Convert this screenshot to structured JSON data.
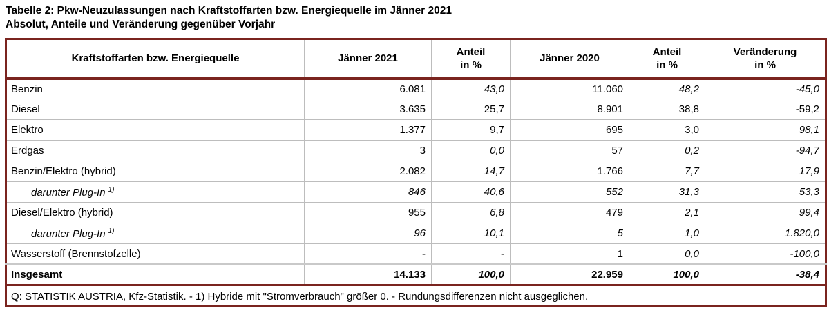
{
  "title": {
    "line1": "Tabelle 2: Pkw-Neuzulassungen nach Kraftstoffarten bzw. Energiequelle im Jänner 2021",
    "line2": "Absolut, Anteile und Veränderung gegenüber Vorjahr"
  },
  "colors": {
    "frame": "#7a241f",
    "grid": "#bdbdbd",
    "total_separator": "#c9c9c9",
    "text": "#000000",
    "background": "#ffffff"
  },
  "table": {
    "columns": [
      {
        "label": "Kraftstoffarten bzw. Energiequelle",
        "sub": ""
      },
      {
        "label": "Jänner 2021",
        "sub": ""
      },
      {
        "label": "Anteil",
        "sub": "in %"
      },
      {
        "label": "Jänner 2020",
        "sub": ""
      },
      {
        "label": "Anteil",
        "sub": "in %"
      },
      {
        "label": "Veränderung",
        "sub": "in %"
      }
    ],
    "rows": [
      {
        "label": "Benzin",
        "sup": "",
        "indent": false,
        "italic_label": false,
        "total": false,
        "cells": [
          {
            "t": "6.081",
            "i": false
          },
          {
            "t": "43,0",
            "i": true
          },
          {
            "t": "11.060",
            "i": false
          },
          {
            "t": "48,2",
            "i": true
          },
          {
            "t": "-45,0",
            "i": true
          }
        ]
      },
      {
        "label": "Diesel",
        "sup": "",
        "indent": false,
        "italic_label": false,
        "total": false,
        "cells": [
          {
            "t": "3.635",
            "i": false
          },
          {
            "t": "25,7",
            "i": false
          },
          {
            "t": "8.901",
            "i": false
          },
          {
            "t": "38,8",
            "i": false
          },
          {
            "t": "-59,2",
            "i": false
          }
        ]
      },
      {
        "label": "Elektro",
        "sup": "",
        "indent": false,
        "italic_label": false,
        "total": false,
        "cells": [
          {
            "t": "1.377",
            "i": false
          },
          {
            "t": "9,7",
            "i": false
          },
          {
            "t": "695",
            "i": false
          },
          {
            "t": "3,0",
            "i": false
          },
          {
            "t": "98,1",
            "i": true
          }
        ]
      },
      {
        "label": "Erdgas",
        "sup": "",
        "indent": false,
        "italic_label": false,
        "total": false,
        "cells": [
          {
            "t": "3",
            "i": false
          },
          {
            "t": "0,0",
            "i": true
          },
          {
            "t": "57",
            "i": false
          },
          {
            "t": "0,2",
            "i": true
          },
          {
            "t": "-94,7",
            "i": true
          }
        ]
      },
      {
        "label": "Benzin/Elektro (hybrid)",
        "sup": "",
        "indent": false,
        "italic_label": false,
        "total": false,
        "cells": [
          {
            "t": "2.082",
            "i": false
          },
          {
            "t": "14,7",
            "i": true
          },
          {
            "t": "1.766",
            "i": false
          },
          {
            "t": "7,7",
            "i": true
          },
          {
            "t": "17,9",
            "i": true
          }
        ]
      },
      {
        "label": "darunter Plug-In",
        "sup": "1)",
        "indent": true,
        "italic_label": true,
        "total": false,
        "cells": [
          {
            "t": "846",
            "i": true
          },
          {
            "t": "40,6",
            "i": true
          },
          {
            "t": "552",
            "i": true
          },
          {
            "t": "31,3",
            "i": true
          },
          {
            "t": "53,3",
            "i": true
          }
        ]
      },
      {
        "label": "Diesel/Elektro (hybrid)",
        "sup": "",
        "indent": false,
        "italic_label": false,
        "total": false,
        "cells": [
          {
            "t": "955",
            "i": false
          },
          {
            "t": "6,8",
            "i": true
          },
          {
            "t": "479",
            "i": false
          },
          {
            "t": "2,1",
            "i": true
          },
          {
            "t": "99,4",
            "i": true
          }
        ]
      },
      {
        "label": "darunter Plug-In",
        "sup": "1)",
        "indent": true,
        "italic_label": true,
        "total": false,
        "cells": [
          {
            "t": "96",
            "i": true
          },
          {
            "t": "10,1",
            "i": true
          },
          {
            "t": "5",
            "i": true
          },
          {
            "t": "1,0",
            "i": true
          },
          {
            "t": "1.820,0",
            "i": true
          }
        ]
      },
      {
        "label": "Wasserstoff (Brennstofzelle)",
        "sup": "",
        "indent": false,
        "italic_label": false,
        "total": false,
        "cells": [
          {
            "t": "-",
            "i": false
          },
          {
            "t": "-",
            "i": false
          },
          {
            "t": "1",
            "i": false
          },
          {
            "t": "0,0",
            "i": true
          },
          {
            "t": "-100,0",
            "i": true
          }
        ]
      },
      {
        "label": "Insgesamt",
        "sup": "",
        "indent": false,
        "italic_label": false,
        "total": true,
        "cells": [
          {
            "t": "14.133",
            "i": false
          },
          {
            "t": "100,0",
            "i": true
          },
          {
            "t": "22.959",
            "i": false
          },
          {
            "t": "100,0",
            "i": true
          },
          {
            "t": "-38,4",
            "i": true
          }
        ]
      }
    ],
    "source": "Q: STATISTIK AUSTRIA, Kfz-Statistik. - 1) Hybride mit  \"Stromverbrauch\" größer 0. - Rundungsdifferenzen nicht ausgeglichen."
  }
}
